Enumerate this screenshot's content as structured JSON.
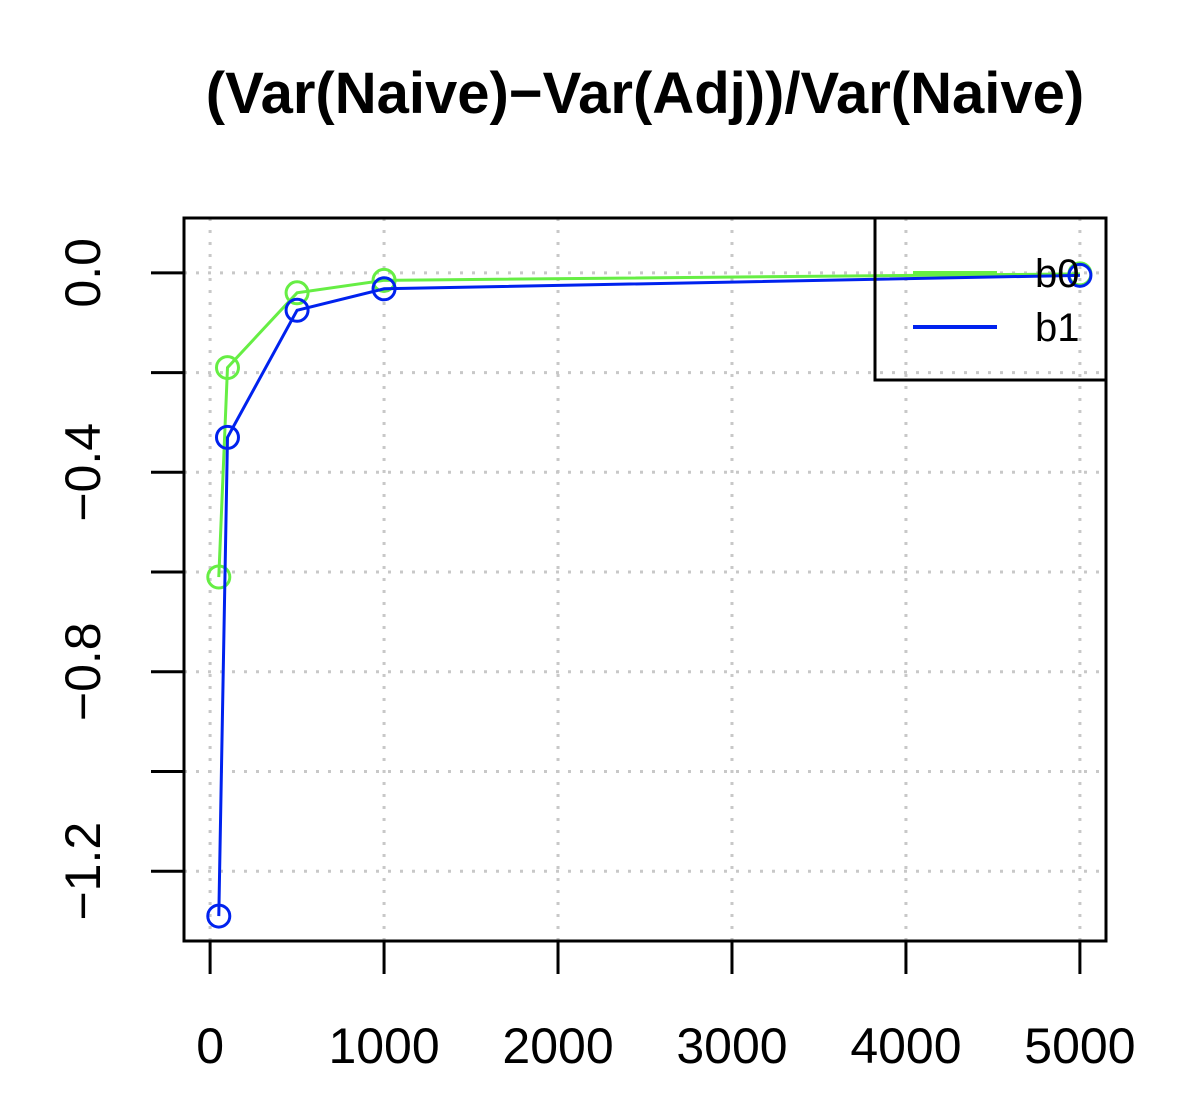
{
  "chart_data": {
    "type": "line",
    "title": "(Var(Naive)−Var(Adj))/Var(Naive)",
    "xlabel": "",
    "ylabel": "",
    "xlim": [
      -150,
      5150
    ],
    "ylim": [
      -1.34,
      0.11
    ],
    "x_ticks": [
      0,
      1000,
      2000,
      3000,
      4000,
      5000
    ],
    "x_tick_labels": [
      "0",
      "1000",
      "2000",
      "3000",
      "4000",
      "5000"
    ],
    "y_ticks": [
      0.0,
      -0.2,
      -0.4,
      -0.6,
      -0.8,
      -1.0,
      -1.2
    ],
    "y_tick_labels": [
      "0.0",
      "",
      "−0.4",
      "",
      "−0.8",
      "",
      "−1.2"
    ],
    "grid": true,
    "legend_position": "top-right",
    "series": [
      {
        "name": "b0",
        "color": "#66ee44",
        "x": [
          50,
          100,
          500,
          1000,
          5000
        ],
        "y": [
          -0.61,
          -0.19,
          -0.04,
          -0.015,
          -0.002
        ]
      },
      {
        "name": "b1",
        "color": "#0022ee",
        "x": [
          50,
          100,
          500,
          1000,
          5000
        ],
        "y": [
          -1.29,
          -0.33,
          -0.075,
          -0.032,
          -0.005
        ]
      }
    ]
  }
}
